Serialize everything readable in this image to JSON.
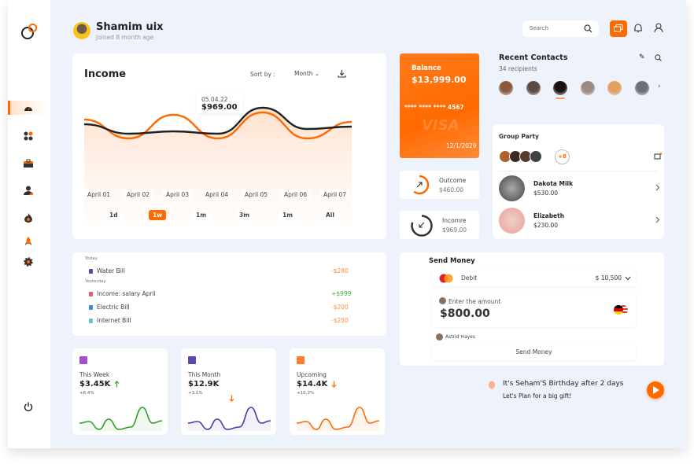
{
  "user": {
    "name": "Shamim uix",
    "subtitle": "Joined 8 month age"
  },
  "search": {
    "placeholder": "Search"
  },
  "sidebar": {
    "items": [
      "dashboard-icon",
      "apps-icon",
      "briefcase-icon",
      "user-icon",
      "fire-icon",
      "rocket-icon",
      "settings-icon"
    ],
    "logout": "power-icon"
  },
  "income": {
    "title": "Income",
    "sort_label": "Sort by :",
    "sort_value": "Month",
    "tooltip_date": "05.04.22",
    "tooltip_value": "$969.00",
    "dates": [
      "April 01",
      "April 02",
      "April 03",
      "April 04",
      "April 05",
      "April 06",
      "April 07"
    ],
    "ranges": [
      "1d",
      "1w",
      "1m",
      "3m",
      "1m",
      "All"
    ],
    "active_range": "1w"
  },
  "chart_data": {
    "type": "line",
    "categories": [
      "April 01",
      "April 02",
      "April 03",
      "April 04",
      "April 05",
      "April 06",
      "April 07"
    ],
    "series": [
      {
        "color": "#ff6a00",
        "values": [
          60,
          20,
          70,
          20,
          75,
          20,
          55
        ]
      },
      {
        "color": "#222222",
        "values": [
          50,
          30,
          35,
          30,
          85,
          40,
          45
        ]
      }
    ]
  },
  "balance": {
    "label": "Balance",
    "amount": "$13,999.00",
    "card_number": "**** **** **** 4567",
    "brand": "VISA",
    "expiry": "12/1/2029"
  },
  "outcome": {
    "label": "Outcome",
    "amount": "$460.00",
    "progress": 0.6
  },
  "income_box": {
    "label": "Incomre",
    "amount": "$969.00",
    "progress": 0.8
  },
  "contacts": {
    "title": "Recent Contacts",
    "subtitle": "34 recipients"
  },
  "group": {
    "title": "Group Party",
    "more": "+8",
    "members": [
      {
        "name": "Dakota Milk",
        "amount": "$530.00"
      },
      {
        "name": "Elizabeth",
        "amount": "$230.00"
      }
    ]
  },
  "transactions": {
    "groups": [
      {
        "label": "Today",
        "items": [
          {
            "name": "Water Bill",
            "amount": "-$280",
            "color": "#ff8a3d"
          }
        ]
      },
      {
        "label": "Yesterday",
        "items": [
          {
            "name": "Income: salary April",
            "amount": "+$999",
            "color": "#3cb043"
          },
          {
            "name": "Electric Bill",
            "amount": "-$200",
            "color": "#ff8a3d"
          },
          {
            "name": "Internet Bill",
            "amount": "-$250",
            "color": "#ff8a3d"
          }
        ]
      }
    ]
  },
  "stats": [
    {
      "label": "This Week",
      "value": "$3.45K",
      "change": "+6.4%",
      "trend": "up",
      "color": "#2e9e2e"
    },
    {
      "label": "This Month",
      "value": "$12.9K",
      "change": "+3.1%",
      "trend": "down",
      "color": "#4a3aa8"
    },
    {
      "label": "Upcoming",
      "value": "$14.4K",
      "change": "+10.3%",
      "trend": "down",
      "color": "#ff6a00"
    }
  ],
  "send": {
    "title": "Send Money",
    "card_type": "Debit",
    "card_balance": "$ 10,500",
    "amount_label": "Enter the amount",
    "amount": "$800.00",
    "recipient": "Astrid Hayes",
    "button": "Send Money"
  },
  "birthday": {
    "title": "It's Seham'S Birthday after 2 days",
    "subtitle": "Let's Plan for a big gift!"
  }
}
